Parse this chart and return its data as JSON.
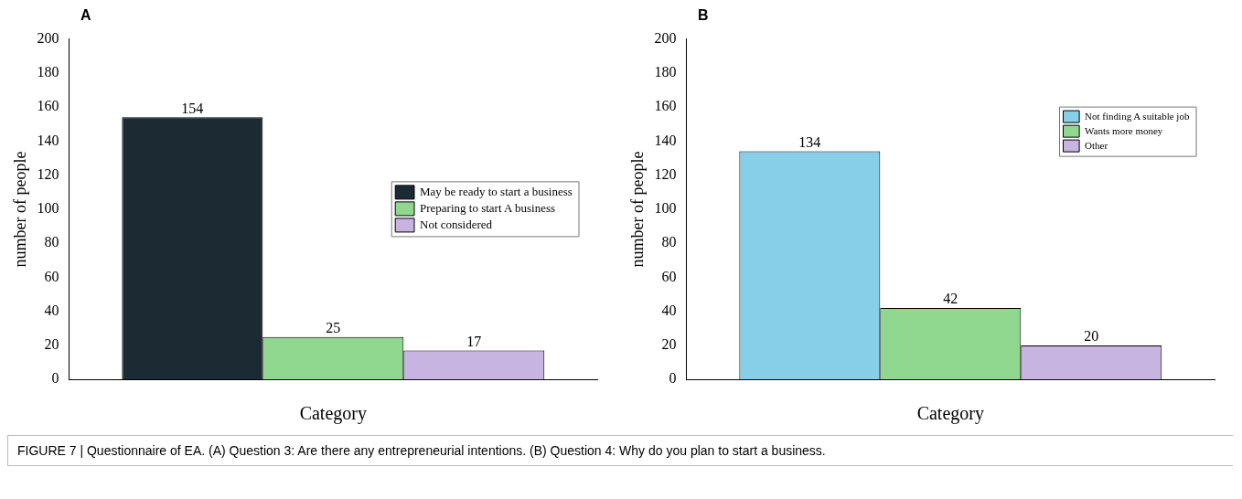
{
  "chart_data": [
    {
      "type": "bar",
      "title": "A",
      "xlabel": "Category",
      "ylabel": "number of people",
      "categories": [
        null
      ],
      "series": [
        {
          "name": "May be ready to start a business",
          "color": "#1c2b33",
          "values": [
            154
          ]
        },
        {
          "name": "Preparing to start A business",
          "color": "#90d890",
          "values": [
            25
          ]
        },
        {
          "name": "Not considered",
          "color": "#c8b4e0",
          "values": [
            17
          ]
        }
      ],
      "ylim": [
        0,
        200
      ],
      "yticks": [
        0,
        20,
        40,
        60,
        80,
        100,
        120,
        140,
        160,
        180,
        200
      ],
      "grid": false,
      "legend": "right",
      "data_labels": true,
      "annotations": [
        "FIGURE 7 | Questionnaire of EA. (A) Question 3: Are there any entrepreneurial intentions. (B) Question 4: Why do you plan to start a business."
      ]
    },
    {
      "type": "bar",
      "title": "B",
      "xlabel": "Category",
      "ylabel": "number of people",
      "categories": [
        null
      ],
      "series": [
        {
          "name": "Not finding A suitable job",
          "color": "#87cee8",
          "values": [
            134
          ]
        },
        {
          "name": "Wants more money",
          "color": "#90d890",
          "values": [
            42
          ]
        },
        {
          "name": "Other",
          "color": "#c8b4e0",
          "values": [
            20
          ]
        }
      ],
      "ylim": [
        0,
        200
      ],
      "yticks": [
        0,
        20,
        40,
        60,
        80,
        100,
        120,
        140,
        160,
        180,
        200
      ],
      "grid": false,
      "legend": "top right",
      "data_labels": true
    }
  ]
}
